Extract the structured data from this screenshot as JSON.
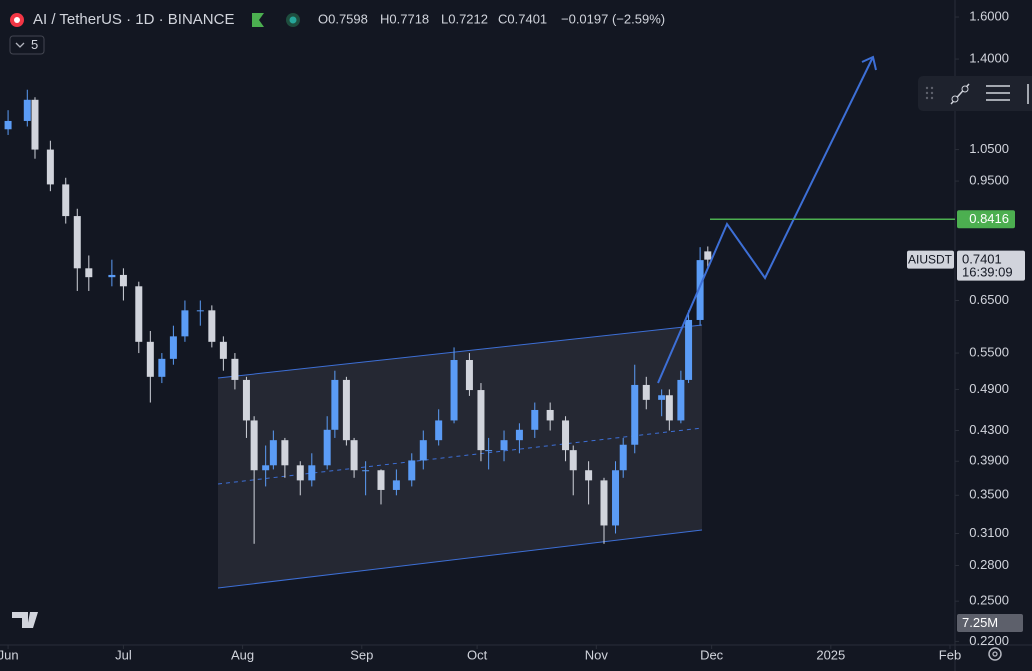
{
  "chart_data": {
    "type": "candlestick",
    "title": "AI / TetherUS · 1D · BINANCE",
    "indicator_length": "5",
    "legend": [
      "O0.7598",
      "H0.7718",
      "L0.7212",
      "C0.7401",
      "−0.0197 (−2.59%)"
    ],
    "up_color": "#5b9cf6",
    "down_color": "#d1d4dc",
    "log_scale": true,
    "grid": false,
    "x": [
      0,
      5,
      7,
      11,
      15,
      18,
      21,
      27,
      30,
      34,
      37,
      40,
      43,
      46,
      50,
      53,
      56,
      59,
      62,
      64,
      67,
      69,
      72,
      76,
      79,
      83,
      85,
      88,
      90,
      93,
      97,
      101,
      105,
      108,
      112,
      116,
      120,
      123,
      125,
      129,
      133,
      137,
      141,
      145,
      147,
      151,
      155,
      158,
      160,
      163,
      166,
      170,
      172,
      175,
      177,
      180,
      182
    ],
    "open": [
      1.12,
      1.15,
      1.23,
      1.05,
      0.94,
      0.85,
      0.72,
      0.7,
      0.705,
      0.68,
      0.57,
      0.51,
      0.54,
      0.58,
      0.63,
      0.63,
      0.57,
      0.54,
      0.505,
      0.444,
      0.379,
      0.385,
      0.417,
      0.385,
      0.367,
      0.385,
      0.431,
      0.505,
      0.417,
      0.379,
      0.379,
      0.356,
      0.367,
      0.391,
      0.417,
      0.444,
      0.538,
      0.489,
      0.404,
      0.404,
      0.417,
      0.431,
      0.459,
      0.444,
      0.404,
      0.379,
      0.367,
      0.318,
      0.379,
      0.411,
      0.497,
      0.474,
      0.481,
      0.444,
      0.505,
      0.611,
      0.7598
    ],
    "high": [
      1.19,
      1.27,
      1.24,
      1.08,
      0.96,
      0.87,
      0.75,
      0.74,
      0.72,
      0.69,
      0.59,
      0.55,
      0.6,
      0.65,
      0.65,
      0.64,
      0.58,
      0.55,
      0.51,
      0.45,
      0.41,
      0.43,
      0.42,
      0.39,
      0.4,
      0.45,
      0.52,
      0.51,
      0.42,
      0.39,
      0.38,
      0.38,
      0.4,
      0.43,
      0.46,
      0.56,
      0.55,
      0.5,
      0.42,
      0.43,
      0.44,
      0.47,
      0.47,
      0.45,
      0.41,
      0.39,
      0.37,
      0.39,
      0.42,
      0.53,
      0.51,
      0.49,
      0.49,
      0.52,
      0.63,
      0.77,
      0.7718
    ],
    "low": [
      1.1,
      1.13,
      1.02,
      0.92,
      0.83,
      0.67,
      0.67,
      0.68,
      0.65,
      0.55,
      0.47,
      0.5,
      0.53,
      0.57,
      0.6,
      0.56,
      0.52,
      0.49,
      0.42,
      0.3,
      0.36,
      0.38,
      0.37,
      0.35,
      0.36,
      0.38,
      0.42,
      0.41,
      0.37,
      0.35,
      0.34,
      0.35,
      0.36,
      0.38,
      0.41,
      0.44,
      0.48,
      0.39,
      0.38,
      0.39,
      0.4,
      0.42,
      0.43,
      0.39,
      0.35,
      0.34,
      0.3,
      0.31,
      0.37,
      0.4,
      0.46,
      0.45,
      0.43,
      0.44,
      0.5,
      0.6,
      0.7212
    ],
    "close": [
      1.15,
      1.23,
      1.05,
      0.94,
      0.85,
      0.72,
      0.7,
      0.705,
      0.68,
      0.57,
      0.51,
      0.54,
      0.58,
      0.63,
      0.63,
      0.57,
      0.54,
      0.505,
      0.444,
      0.379,
      0.385,
      0.417,
      0.385,
      0.367,
      0.385,
      0.431,
      0.505,
      0.417,
      0.379,
      0.379,
      0.356,
      0.367,
      0.391,
      0.417,
      0.444,
      0.538,
      0.489,
      0.404,
      0.404,
      0.417,
      0.431,
      0.459,
      0.444,
      0.404,
      0.379,
      0.367,
      0.318,
      0.379,
      0.411,
      0.497,
      0.474,
      0.481,
      0.444,
      0.505,
      0.611,
      0.739,
      0.7401
    ],
    "xlim": [
      -2.1,
      246.3
    ],
    "xticks": [
      {
        "value": 0,
        "label": "Jun"
      },
      {
        "value": 30,
        "label": "Jul"
      },
      {
        "value": 61,
        "label": "Aug"
      },
      {
        "value": 92,
        "label": "Sep"
      },
      {
        "value": 122,
        "label": "Oct"
      },
      {
        "value": 153,
        "label": "Nov"
      },
      {
        "value": 183,
        "label": "Dec"
      },
      {
        "value": 214,
        "label": "2025"
      },
      {
        "value": 245,
        "label": "Feb"
      }
    ],
    "ylim": [
      0.2175,
      1.689
    ],
    "yticks": [
      {
        "value": 1.6,
        "label": "1.6000"
      },
      {
        "value": 1.4,
        "label": "1.4000"
      },
      {
        "value": 1.05,
        "label": "1.0500"
      },
      {
        "value": 0.95,
        "label": "0.9500"
      },
      {
        "value": 0.65,
        "label": "0.6500"
      },
      {
        "value": 0.55,
        "label": "0.5500"
      },
      {
        "value": 0.49,
        "label": "0.4900"
      },
      {
        "value": 0.43,
        "label": "0.4300"
      },
      {
        "value": 0.39,
        "label": "0.3900"
      },
      {
        "value": 0.35,
        "label": "0.3500"
      },
      {
        "value": 0.31,
        "label": "0.3100"
      },
      {
        "value": 0.28,
        "label": "0.2800"
      },
      {
        "value": 0.25,
        "label": "0.2500"
      },
      {
        "value": 0.22,
        "label": "0.2200"
      }
    ],
    "horizontal_line": {
      "value": 0.8416,
      "color": "#4caf50"
    },
    "last_price": {
      "symbol": "AIUSDT",
      "value": 0.7401,
      "countdown": "16:39:09"
    },
    "volume_label": "7.25M"
  }
}
